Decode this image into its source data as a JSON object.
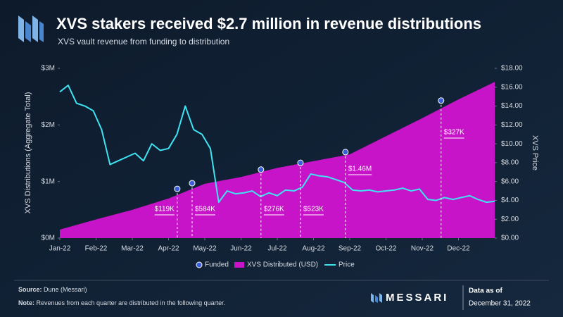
{
  "chart_data": {
    "type": "combo",
    "title": "XVS stakers received $2.7 million in revenue distributions",
    "subtitle": "XVS vault revenue from funding to distribution",
    "ylabel": "XVS Distributions  (Aggregate Total)",
    "y2label": "XVS Price",
    "xlim": [
      0,
      12
    ],
    "xticks": [
      {
        "value": 0,
        "label": "Jan-22"
      },
      {
        "value": 1,
        "label": "Feb-22"
      },
      {
        "value": 2,
        "label": "Mar-22"
      },
      {
        "value": 3,
        "label": "Apr-22"
      },
      {
        "value": 4,
        "label": "May-22"
      },
      {
        "value": 5,
        "label": "Jun-22"
      },
      {
        "value": 6,
        "label": "Jul-22"
      },
      {
        "value": 7,
        "label": "Aug-22"
      },
      {
        "value": 8,
        "label": "Sep-22"
      },
      {
        "value": 9,
        "label": "Oct-22"
      },
      {
        "value": 10,
        "label": "Nov-22"
      },
      {
        "value": 11,
        "label": "Dec-22"
      }
    ],
    "ylim": [
      0,
      3000000
    ],
    "yticks": [
      {
        "value": 0,
        "label": "$0M"
      },
      {
        "value": 1000000,
        "label": "$1M"
      },
      {
        "value": 2000000,
        "label": "$2M"
      },
      {
        "value": 3000000,
        "label": "$3M"
      }
    ],
    "y2lim": [
      0,
      18
    ],
    "y2ticks": [
      {
        "value": 0,
        "label": "$0.00"
      },
      {
        "value": 2,
        "label": "$2.00"
      },
      {
        "value": 4,
        "label": "$4.00"
      },
      {
        "value": 6,
        "label": "$6.00"
      },
      {
        "value": 8,
        "label": "$8.00"
      },
      {
        "value": 10,
        "label": "$10.00"
      },
      {
        "value": 12,
        "label": "$12.00"
      },
      {
        "value": 14,
        "label": "$14.00"
      },
      {
        "value": 16,
        "label": "$16.00"
      },
      {
        "value": 18,
        "label": "$18.00"
      }
    ],
    "series": [
      {
        "name": "XVS Distributed (USD)",
        "type": "area",
        "color": "#c814c8",
        "values": [
          150000,
          330000,
          500000,
          700000,
          960000,
          1080000,
          1240000,
          1360000,
          1480000,
          1800000,
          2120000,
          2450000,
          2760000
        ]
      },
      {
        "name": "Price",
        "type": "line",
        "axis": "y2",
        "color": "#3fe3f2",
        "values": [
          15.5,
          16.2,
          14.3,
          14.0,
          13.5,
          11.5,
          7.8,
          8.2,
          8.6,
          9.0,
          8.2,
          10.0,
          9.3,
          9.5,
          11.0,
          14.0,
          11.5,
          11.0,
          9.5,
          3.8,
          5.0,
          4.7,
          4.8,
          5.0,
          4.4,
          4.8,
          4.5,
          5.1,
          5.0,
          5.4,
          6.8,
          6.6,
          6.5,
          6.2,
          5.9,
          5.1,
          5.0,
          5.1,
          4.9,
          5.0,
          5.1,
          5.3,
          5.0,
          5.2,
          4.1,
          4.0,
          4.3,
          4.1,
          4.3,
          4.5,
          4.1,
          3.8,
          3.9
        ]
      },
      {
        "name": "Funded",
        "type": "scatter",
        "color": "#3c5fd8",
        "x": [
          3.24,
          3.65,
          5.55,
          6.64,
          7.88,
          10.52
        ],
        "values": [
          870000,
          970000,
          1210000,
          1330000,
          1520000,
          2430000
        ],
        "annotations": [
          "$119K",
          "$584K",
          "$276K",
          "$523K",
          "$1.46M",
          "$327K"
        ]
      }
    ]
  },
  "footer": {
    "source_label": "Source:",
    "source": "Dune (Messari)",
    "note_label": "Note:",
    "note": "Revenues from each quarter are distributed in the following quarter.",
    "brand": "MESSARI",
    "data_as_of_label": "Data as of",
    "data_as_of": "December 31, 2022"
  }
}
